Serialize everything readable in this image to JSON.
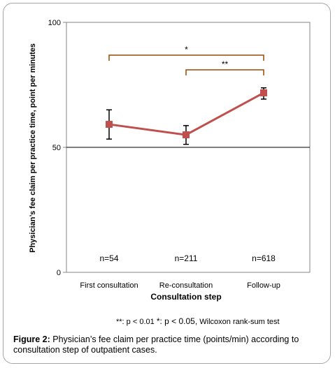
{
  "chart_data": {
    "type": "line",
    "title": "",
    "xlabel": "Consultation step",
    "ylabel": "Physician’s fee claim per practice time, point per minutes",
    "ylim": [
      0,
      100
    ],
    "yticks": [
      "0",
      "50",
      "100"
    ],
    "gridlines_y": [
      50
    ],
    "categories": [
      "First consultation",
      "Re-consultation",
      "Follow-up"
    ],
    "series": [
      {
        "values": [
          59.2,
          55.0,
          71.8
        ],
        "error_low": [
          53.3,
          51.2,
          69.3
        ],
        "error_high": [
          65.0,
          58.7,
          73.8
        ],
        "color": "#c0504d"
      }
    ],
    "sample_sizes": [
      "n=54",
      "n=211",
      "n=618"
    ],
    "significance": [
      {
        "from": 0,
        "to": 2,
        "label": "*",
        "color": "#984807"
      },
      {
        "from": 1,
        "to": 2,
        "label": "**",
        "color": "#984807"
      }
    ]
  },
  "footnote": {
    "double_star": "**: p < 0.01",
    "single_star": "*: p < 0.05,",
    "test": "Wilcoxon rank-sum test"
  },
  "caption": {
    "label": "Figure 2:",
    "text": " Physician’s fee claim per practice time (points/min) according to consultation step of outpatient cases."
  }
}
